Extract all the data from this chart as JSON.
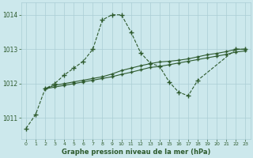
{
  "title": "Graphe pression niveau de la mer (hPa)",
  "bg_color": "#cce8ec",
  "grid_color": "#aacdd5",
  "line_color": "#2d5a2d",
  "xlim": [
    -0.5,
    23.5
  ],
  "ylim": [
    1010.4,
    1014.35
  ],
  "yticks": [
    1011,
    1012,
    1013,
    1014
  ],
  "xticks": [
    0,
    1,
    2,
    3,
    4,
    5,
    6,
    7,
    8,
    9,
    10,
    11,
    12,
    13,
    14,
    15,
    16,
    17,
    18,
    19,
    20,
    21,
    22,
    23
  ],
  "s1_x": [
    0,
    1,
    2,
    3,
    4,
    5,
    6,
    7,
    8,
    9,
    10,
    11,
    12,
    13,
    14,
    15,
    16,
    17,
    18,
    22,
    23
  ],
  "s1_y": [
    1010.7,
    1011.1,
    1011.85,
    1012.0,
    1012.25,
    1012.45,
    1012.65,
    1013.0,
    1013.85,
    1014.0,
    1014.0,
    1013.5,
    1012.9,
    1012.6,
    1012.5,
    1012.05,
    1011.75,
    1011.65,
    1012.1,
    1013.0,
    1013.0
  ],
  "s2_x": [
    2,
    3,
    4,
    5,
    6,
    7,
    8,
    9,
    10,
    11,
    12,
    13,
    14,
    15,
    16,
    17,
    18,
    19,
    20,
    21,
    22,
    23
  ],
  "s2_y": [
    1011.85,
    1011.95,
    1012.0,
    1012.05,
    1012.1,
    1012.15,
    1012.2,
    1012.28,
    1012.38,
    1012.45,
    1012.52,
    1012.58,
    1012.63,
    1012.65,
    1012.68,
    1012.72,
    1012.78,
    1012.84,
    1012.88,
    1012.93,
    1013.0,
    1013.0
  ],
  "s3_x": [
    2,
    3,
    4,
    5,
    6,
    7,
    8,
    9,
    10,
    11,
    12,
    13,
    14,
    15,
    16,
    17,
    18,
    19,
    20,
    21,
    22,
    23
  ],
  "s3_y": [
    1011.85,
    1011.9,
    1011.95,
    1012.0,
    1012.05,
    1012.1,
    1012.15,
    1012.2,
    1012.27,
    1012.33,
    1012.4,
    1012.47,
    1012.5,
    1012.55,
    1012.6,
    1012.65,
    1012.7,
    1012.75,
    1012.8,
    1012.85,
    1012.92,
    1012.95
  ]
}
